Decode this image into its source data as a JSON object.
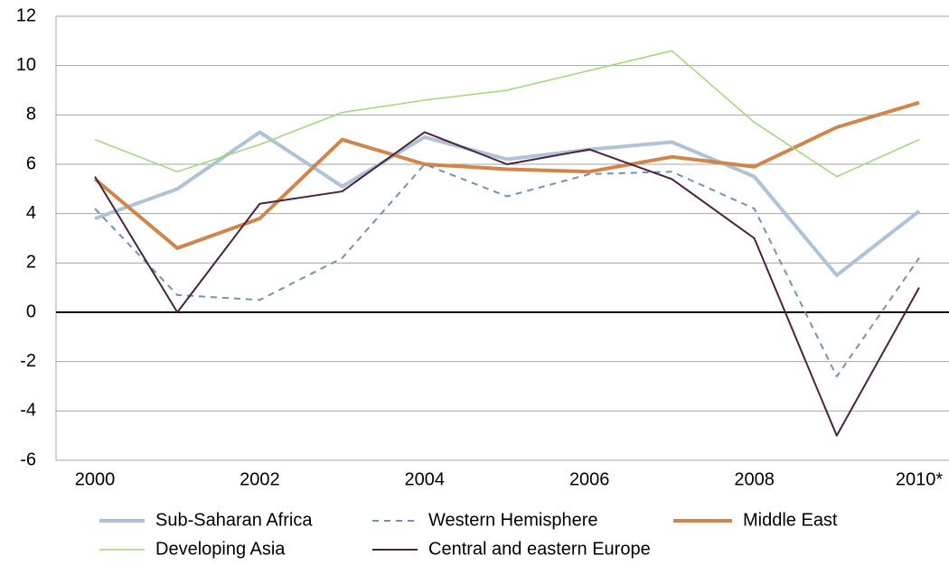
{
  "chart_data": {
    "type": "line",
    "categories": [
      "2000",
      null,
      "2002",
      null,
      "2004",
      null,
      "2006",
      null,
      "2008",
      null,
      "2010*"
    ],
    "ylim": [
      -6,
      12
    ],
    "yticks": [
      -6,
      -4,
      -2,
      0,
      2,
      4,
      6,
      8,
      10,
      12
    ],
    "grid": true,
    "series": [
      {
        "name": "Sub-Saharan Africa",
        "color": "#b0c2d8",
        "line_width": 4,
        "dashed": false,
        "values": [
          3.8,
          5.0,
          7.3,
          5.1,
          7.1,
          6.2,
          6.6,
          6.9,
          5.5,
          1.5,
          4.1
        ]
      },
      {
        "name": "Western Hemisphere",
        "color": "#7391b5",
        "line_width": 2,
        "dashed": true,
        "values": [
          4.2,
          0.7,
          0.5,
          2.2,
          6.0,
          4.7,
          5.6,
          5.7,
          4.2,
          -2.6,
          2.2
        ]
      },
      {
        "name": "Middle East",
        "color": "#d0854a",
        "line_width": 4,
        "dashed": false,
        "values": [
          5.4,
          2.6,
          3.8,
          7.0,
          6.0,
          5.8,
          5.7,
          6.3,
          5.9,
          7.5,
          8.5
        ]
      },
      {
        "name": "Developing Asia",
        "color": "#9fd67a",
        "line_width": 1.5,
        "dashed": false,
        "values": [
          7.0,
          5.7,
          6.8,
          8.1,
          8.6,
          9.0,
          9.8,
          10.6,
          7.7,
          5.5,
          7.0
        ]
      },
      {
        "name": "Central and eastern Europe",
        "color": "#4a2340",
        "line_width": 2,
        "dashed": false,
        "values": [
          5.5,
          0.0,
          4.4,
          4.9,
          7.3,
          6.0,
          6.6,
          5.4,
          3.0,
          -5.0,
          1.0
        ]
      }
    ]
  }
}
